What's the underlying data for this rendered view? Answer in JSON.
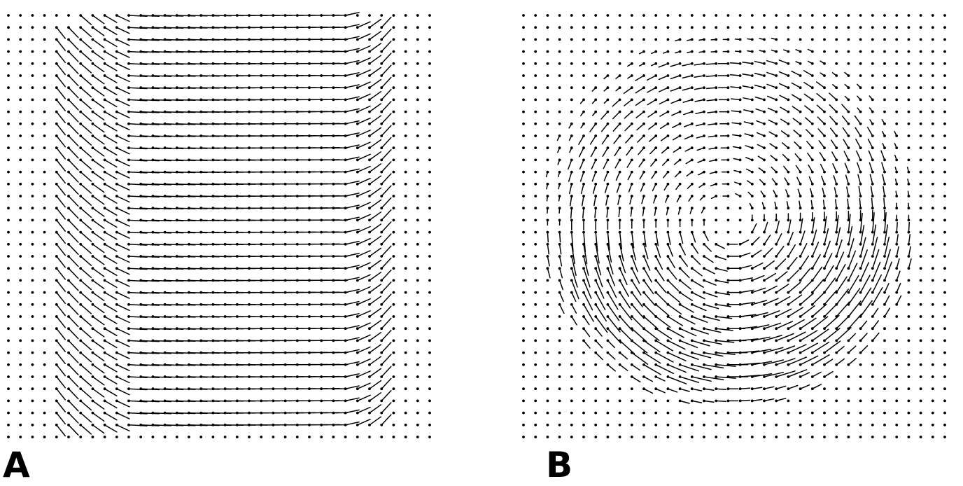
{
  "panels": [
    {
      "label": "A",
      "flow_pattern": "uniform-leftward-with-curved-edges"
    },
    {
      "label": "B",
      "flow_pattern": "rotational-vortex"
    }
  ],
  "colors": {
    "background": "#ffffff",
    "ink": "#000000"
  }
}
